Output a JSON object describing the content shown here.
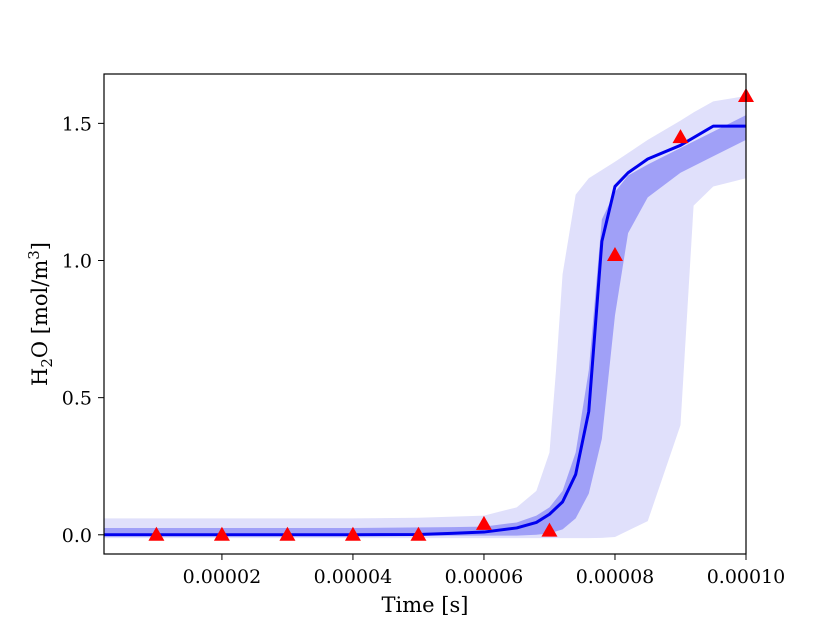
{
  "chart_data": {
    "type": "line",
    "xlabel": "Time [s]",
    "ylabel": {
      "main": "H",
      "sub": "2",
      "mid": "O [mol/m",
      "sup": "3",
      "end": "]"
    },
    "xlim": [
      2e-06,
      0.0001
    ],
    "ylim": [
      -0.07,
      1.68
    ],
    "x_ticks": [
      {
        "value": 2e-05,
        "label": "0.00002"
      },
      {
        "value": 4e-05,
        "label": "0.00004"
      },
      {
        "value": 6e-05,
        "label": "0.00006"
      },
      {
        "value": 8e-05,
        "label": "0.00008"
      },
      {
        "value": 0.0001,
        "label": "0.00010"
      }
    ],
    "y_ticks": [
      {
        "value": 0.0,
        "label": "0.0"
      },
      {
        "value": 0.5,
        "label": "0.5"
      },
      {
        "value": 1.0,
        "label": "1.0"
      },
      {
        "value": 1.5,
        "label": "1.5"
      }
    ],
    "series": [
      {
        "type": "band",
        "color": "#e0e0fb",
        "x": [
          2e-06,
          2e-05,
          4e-05,
          5e-05,
          6e-05,
          6.5e-05,
          6.8e-05,
          7e-05,
          7.1e-05,
          7.2e-05,
          7.4e-05,
          7.6e-05,
          7.8e-05,
          8e-05,
          8.5e-05,
          9e-05,
          9.2e-05,
          9.5e-05,
          0.0001
        ],
        "lower": [
          -0.012,
          -0.012,
          -0.012,
          -0.012,
          -0.012,
          -0.012,
          -0.012,
          -0.012,
          -0.012,
          -0.012,
          -0.012,
          -0.012,
          -0.011,
          -0.008,
          0.05,
          0.4,
          1.2,
          1.27,
          1.3
        ],
        "upper": [
          0.06,
          0.06,
          0.06,
          0.062,
          0.07,
          0.1,
          0.16,
          0.3,
          0.6,
          0.95,
          1.24,
          1.3,
          1.33,
          1.36,
          1.44,
          1.51,
          1.54,
          1.58,
          1.6
        ]
      },
      {
        "type": "band",
        "color": "#a0a0f7",
        "x": [
          2e-06,
          4e-05,
          5.5e-05,
          6e-05,
          6.5e-05,
          6.8e-05,
          7e-05,
          7.2e-05,
          7.4e-05,
          7.6e-05,
          7.8e-05,
          8e-05,
          8.2e-05,
          8.5e-05,
          9e-05,
          9.5e-05,
          0.0001
        ],
        "lower": [
          -0.003,
          -0.003,
          -0.003,
          -0.003,
          -0.003,
          0.0,
          0.005,
          0.02,
          0.06,
          0.15,
          0.35,
          0.8,
          1.1,
          1.23,
          1.32,
          1.38,
          1.44
        ],
        "upper": [
          0.025,
          0.025,
          0.028,
          0.03,
          0.045,
          0.07,
          0.1,
          0.16,
          0.3,
          0.6,
          1.15,
          1.25,
          1.31,
          1.35,
          1.41,
          1.47,
          1.53
        ]
      },
      {
        "type": "line",
        "color": "#0000ee",
        "x": [
          2e-06,
          2e-05,
          4e-05,
          5e-05,
          5.5e-05,
          6e-05,
          6.5e-05,
          6.8e-05,
          7e-05,
          7.2e-05,
          7.4e-05,
          7.6e-05,
          7.8e-05,
          8e-05,
          8.2e-05,
          8.5e-05,
          9e-05,
          9.5e-05,
          0.0001
        ],
        "y": [
          0.0,
          0.0,
          0.0,
          0.001,
          0.005,
          0.01,
          0.025,
          0.045,
          0.075,
          0.12,
          0.22,
          0.45,
          1.07,
          1.27,
          1.32,
          1.37,
          1.42,
          1.49,
          1.49
        ]
      },
      {
        "type": "scatter",
        "marker": "triangle",
        "color": "#ff0000",
        "x": [
          1e-05,
          2e-05,
          3e-05,
          4e-05,
          5e-05,
          6e-05,
          7e-05,
          8e-05,
          9e-05,
          0.0001
        ],
        "y": [
          0.0,
          0.0,
          0.0,
          0.0,
          0.0,
          0.04,
          0.015,
          1.02,
          1.45,
          1.6
        ]
      }
    ]
  }
}
